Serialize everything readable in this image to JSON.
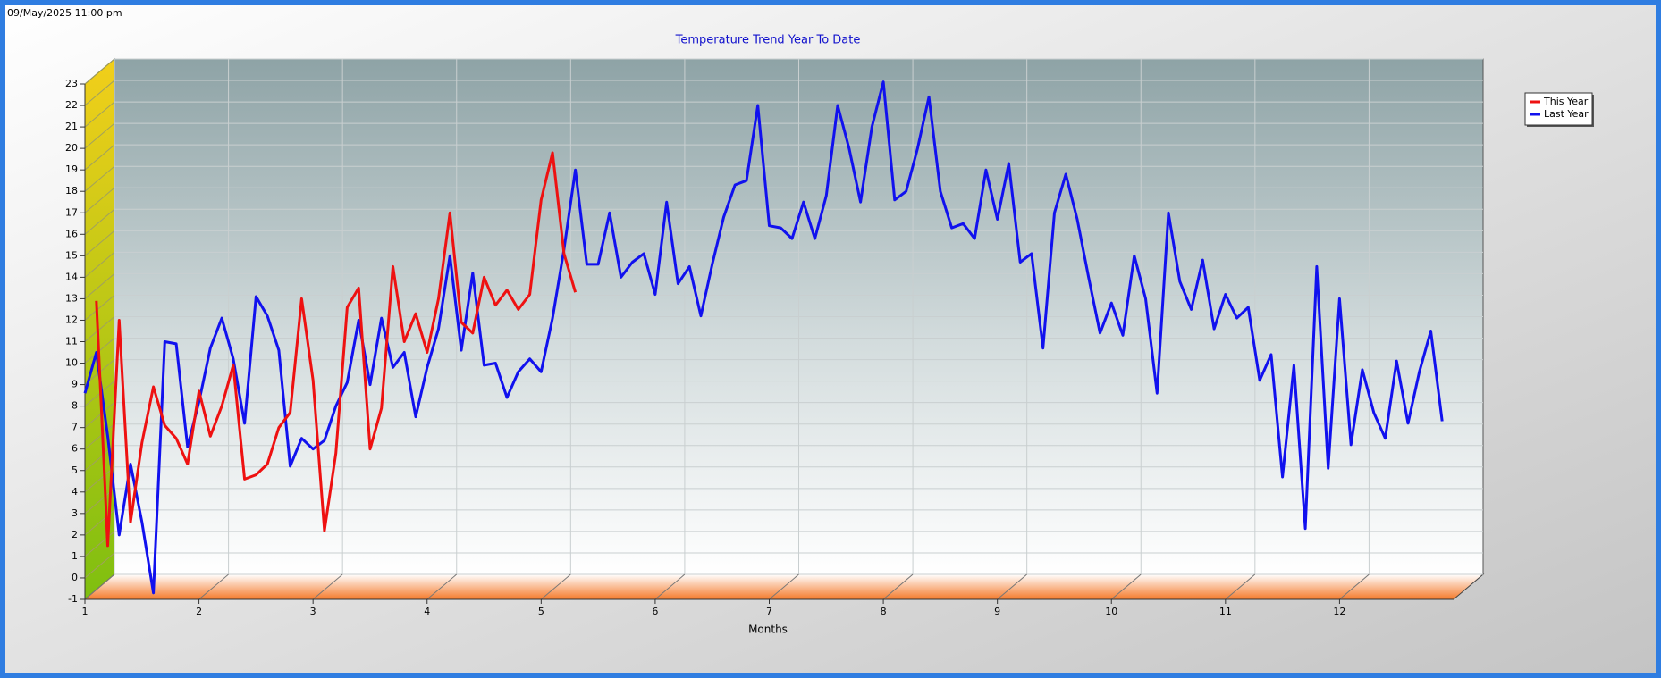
{
  "timestamp": "09/May/2025 11:00 pm",
  "chart_data": {
    "type": "line",
    "title": "Temperature Trend Year To Date",
    "x_label": "Months",
    "xlim": [
      1,
      13
    ],
    "xticks": [
      1,
      2,
      3,
      4,
      5,
      6,
      7,
      8,
      9,
      10,
      11,
      12
    ],
    "ylim": [
      -1,
      23
    ],
    "yticks": [
      -1,
      0,
      1,
      2,
      3,
      4,
      5,
      6,
      7,
      8,
      9,
      10,
      11,
      12,
      13,
      14,
      15,
      16,
      17,
      18,
      19,
      20,
      21,
      22,
      23
    ],
    "grid": true,
    "legend": "top-right",
    "x": [
      1,
      1.1,
      1.2,
      1.3,
      1.4,
      1.5,
      1.6,
      1.7,
      1.8,
      1.9,
      2,
      2.1,
      2.2,
      2.3,
      2.4,
      2.5,
      2.6,
      2.7,
      2.8,
      2.9,
      3,
      3.1,
      3.2,
      3.3,
      3.4,
      3.5,
      3.6,
      3.7,
      3.8,
      3.9,
      4,
      4.1,
      4.2,
      4.3,
      4.4,
      4.5,
      4.6,
      4.7,
      4.8,
      4.9,
      5,
      5.1,
      5.2,
      5.3,
      5.4,
      5.5,
      5.6,
      5.7,
      5.8,
      5.9,
      6,
      6.1,
      6.2,
      6.3,
      6.4,
      6.5,
      6.6,
      6.7,
      6.8,
      6.9,
      7,
      7.1,
      7.2,
      7.3,
      7.4,
      7.5,
      7.6,
      7.7,
      7.8,
      7.9,
      8,
      8.1,
      8.2,
      8.3,
      8.4,
      8.5,
      8.6,
      8.7,
      8.8,
      8.9,
      9,
      9.1,
      9.2,
      9.3,
      9.4,
      9.5,
      9.6,
      9.7,
      9.8,
      9.9,
      10,
      10.1,
      10.2,
      10.3,
      10.4,
      10.5,
      10.6,
      10.7,
      10.8,
      10.9,
      11,
      11.1,
      11.2,
      11.3,
      11.4,
      11.5,
      11.6,
      11.7,
      11.8,
      11.9,
      12,
      12.1,
      12.2,
      12.3,
      12.4,
      12.5,
      12.6,
      12.7,
      12.8,
      12.9
    ],
    "series": [
      {
        "name": "This Year",
        "color": "#ee1111",
        "values": [
          null,
          12.9,
          1.5,
          12,
          2.6,
          6.3,
          8.9,
          7.1,
          6.5,
          5.3,
          8.7,
          6.6,
          8,
          9.9,
          4.6,
          4.8,
          5.3,
          7,
          7.7,
          13,
          9.2,
          2.2,
          5.8,
          12.6,
          13.5,
          6,
          7.9,
          14.5,
          11,
          12.3,
          10.5,
          13,
          17,
          11.9,
          11.4,
          14,
          12.7,
          13.4,
          12.5,
          13.2,
          17.6,
          19.8,
          15.1,
          13.3,
          null,
          null,
          null,
          null,
          null,
          null,
          null,
          null,
          null,
          null,
          null,
          null,
          null,
          null,
          null,
          null,
          null,
          null,
          null,
          null,
          null,
          null,
          null,
          null,
          null,
          null,
          null,
          null,
          null,
          null,
          null,
          null,
          null,
          null,
          null,
          null,
          null,
          null,
          null,
          null,
          null,
          null,
          null,
          null,
          null,
          null,
          null,
          null,
          null,
          null,
          null,
          null,
          null,
          null,
          null,
          null,
          null,
          null,
          null,
          null,
          null,
          null,
          null,
          null,
          null,
          null,
          null,
          null,
          null,
          null,
          null,
          null,
          null,
          null,
          null,
          null
        ]
      },
      {
        "name": "Last Year",
        "color": "#1111ee",
        "values": [
          8.6,
          10.5,
          6.6,
          2,
          5.3,
          2.6,
          -0.7,
          11,
          10.9,
          6.1,
          8.2,
          10.7,
          12.1,
          10.2,
          7.2,
          13.1,
          12.2,
          10.6,
          5.2,
          6.5,
          6,
          6.4,
          8,
          9.1,
          12,
          9,
          12.1,
          9.8,
          10.5,
          7.5,
          9.8,
          11.6,
          15,
          10.6,
          14.2,
          9.9,
          10,
          8.4,
          9.6,
          10.2,
          9.6,
          12.1,
          15.3,
          19,
          14.6,
          14.6,
          17,
          14,
          14.7,
          15.1,
          13.2,
          17.5,
          13.7,
          14.5,
          12.2,
          14.6,
          16.8,
          18.3,
          18.5,
          22,
          16.4,
          16.3,
          15.8,
          17.5,
          15.8,
          17.8,
          22,
          20,
          17.5,
          21,
          23.1,
          17.6,
          18,
          20,
          22.4,
          18,
          16.3,
          16.5,
          15.8,
          19,
          16.7,
          19.3,
          14.7,
          15.1,
          10.7,
          17,
          18.8,
          16.7,
          14,
          11.4,
          12.8,
          11.3,
          15,
          13,
          8.6,
          17,
          13.8,
          12.5,
          14.8,
          11.6,
          13.2,
          12.1,
          12.6,
          9.2,
          10.4,
          4.7,
          9.9,
          2.3,
          14.5,
          5.1,
          13,
          6.2,
          9.7,
          7.7,
          6.5,
          10.1,
          7.2,
          9.6,
          11.5,
          7.3
        ]
      }
    ]
  }
}
